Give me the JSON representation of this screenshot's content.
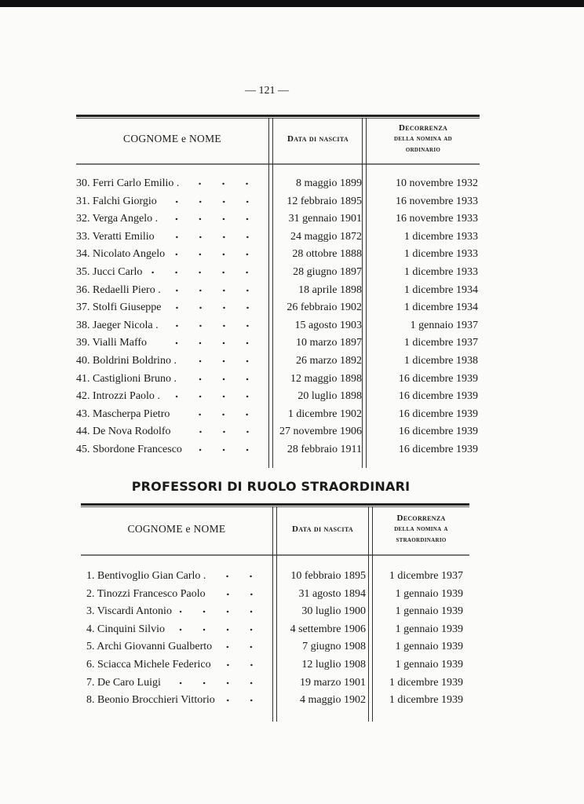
{
  "page_number": "— 121 —",
  "table_ordinari": {
    "headers": {
      "name": "COGNOME e NOME",
      "birth": "Data di nascita",
      "decorrenza": [
        "Decorrenza",
        "della nomina ad",
        "ordinario"
      ]
    },
    "rows": [
      {
        "name": "30. Ferri Carlo Emilio .",
        "birth": "8 maggio 1899",
        "decorrenza": "10 novembre 1932"
      },
      {
        "name": "31. Falchi Giorgio",
        "birth": "12 febbraio 1895",
        "decorrenza": "16 novembre 1933"
      },
      {
        "name": "32. Verga Angelo .",
        "birth": "31 gennaio 1901",
        "decorrenza": "16 novembre 1933"
      },
      {
        "name": "33. Veratti Emilio",
        "birth": "24 maggio 1872",
        "decorrenza": "1 dicembre 1933"
      },
      {
        "name": "34. Nicolato Angelo",
        "birth": "28 ottobre 1888",
        "decorrenza": "1 dicembre 1933"
      },
      {
        "name": "35. Jucci Carlo",
        "birth": "28 giugno 1897",
        "decorrenza": "1 dicembre 1933"
      },
      {
        "name": "36. Redaelli Piero .",
        "birth": "18 aprile 1898",
        "decorrenza": "1 dicembre 1934"
      },
      {
        "name": "37. Stolfi Giuseppe",
        "birth": "26 febbraio 1902",
        "decorrenza": "1 dicembre 1934"
      },
      {
        "name": "38. Jaeger Nicola .",
        "birth": "15 agosto 1903",
        "decorrenza": "1 gennaio 1937"
      },
      {
        "name": "39. Vialli Maffo",
        "birth": "10 marzo 1897",
        "decorrenza": "1 dicembre 1937"
      },
      {
        "name": "40. Boldrini Boldrino .",
        "birth": "26 marzo 1892",
        "decorrenza": "1 dicembre 1938"
      },
      {
        "name": "41. Castiglioni Bruno .",
        "birth": "12 maggio 1898",
        "decorrenza": "16 dicembre 1939"
      },
      {
        "name": "42. Introzzi Paolo .",
        "birth": "20 luglio 1898",
        "decorrenza": "16 dicembre 1939"
      },
      {
        "name": "43. Mascherpa Pietro",
        "birth": "1 dicembre 1902",
        "decorrenza": "16 dicembre 1939"
      },
      {
        "name": "44. De Nova Rodolfo",
        "birth": "27 novembre 1906",
        "decorrenza": "16 dicembre 1939"
      },
      {
        "name": "45. Sbordone Francesco",
        "birth": "28 febbraio 1911",
        "decorrenza": "16 dicembre 1939"
      }
    ]
  },
  "section_title": "PROFESSORI DI RUOLO STRAORDINARI",
  "table_straordinari": {
    "headers": {
      "name": "COGNOME e NOME",
      "birth": "Data di nascita",
      "decorrenza": [
        "Decorrenza",
        "della nomina a",
        "straordinario"
      ]
    },
    "rows": [
      {
        "name": "1. Bentivoglio Gian Carlo .",
        "birth": "10 febbraio 1895",
        "decorrenza": "1 dicembre 1937"
      },
      {
        "name": "2. Tinozzi Francesco Paolo",
        "birth": "31 agosto 1894",
        "decorrenza": "1 gennaio 1939"
      },
      {
        "name": "3. Viscardi Antonio",
        "birth": "30 luglio 1900",
        "decorrenza": "1 gennaio 1939"
      },
      {
        "name": "4. Cinquini Silvio",
        "birth": "4 settembre 1906",
        "decorrenza": "1 gennaio 1939"
      },
      {
        "name": "5. Archi Giovanni Gualberto",
        "birth": "7 giugno 1908",
        "decorrenza": "1 gennaio 1939"
      },
      {
        "name": "6. Sciacca Michele Federico",
        "birth": "12 luglio 1908",
        "decorrenza": "1 gennaio 1939"
      },
      {
        "name": "7. De Caro Luigi",
        "birth": "19 marzo 1901",
        "decorrenza": "1 dicembre 1939"
      },
      {
        "name": "8. Beonio Brocchieri Vittorio",
        "birth": "4 maggio 1902",
        "decorrenza": "1 dicembre 1939"
      }
    ]
  }
}
